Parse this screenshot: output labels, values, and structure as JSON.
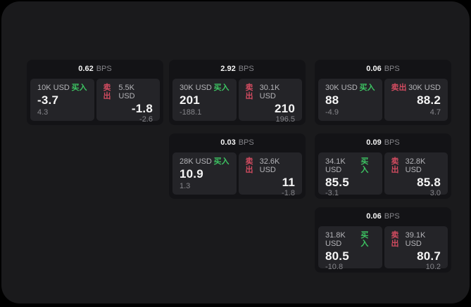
{
  "theme": {
    "outer_bg": "#000000",
    "surface_bg": "#1a1a1c",
    "card_bg": "#131316",
    "panel_bg": "#242428",
    "text_primary": "#f5f5f5",
    "text_secondary": "#b4b4b8",
    "text_muted": "#85858a",
    "buy_color": "#3dc462",
    "sell_color": "#d24b60"
  },
  "labels": {
    "unit": "BPS",
    "buy": "买入",
    "sell": "卖出"
  },
  "cards": [
    {
      "grid": {
        "row": 0,
        "col": 0
      },
      "bps": "0.62",
      "buy": {
        "amount": "10K USD",
        "value": "-3.7",
        "delta": "4.3"
      },
      "sell": {
        "amount": "5.5K USD",
        "value": "-1.8",
        "delta": "-2.6"
      }
    },
    {
      "grid": {
        "row": 0,
        "col": 1
      },
      "bps": "2.92",
      "buy": {
        "amount": "30K USD",
        "value": "201",
        "delta": "-188.1"
      },
      "sell": {
        "amount": "30.1K USD",
        "value": "210",
        "delta": "196.5"
      }
    },
    {
      "grid": {
        "row": 0,
        "col": 2
      },
      "bps": "0.06",
      "buy": {
        "amount": "30K USD",
        "value": "88",
        "delta": "-4.9"
      },
      "sell": {
        "amount": "30K USD",
        "value": "88.2",
        "delta": "4.7"
      }
    },
    {
      "grid": {
        "row": 1,
        "col": 1
      },
      "bps": "0.03",
      "buy": {
        "amount": "28K USD",
        "value": "10.9",
        "delta": "1.3"
      },
      "sell": {
        "amount": "32.6K USD",
        "value": "11",
        "delta": "-1.8"
      }
    },
    {
      "grid": {
        "row": 1,
        "col": 2
      },
      "bps": "0.09",
      "buy": {
        "amount": "34.1K USD",
        "value": "85.5",
        "delta": "-3.1"
      },
      "sell": {
        "amount": "32.8K USD",
        "value": "85.8",
        "delta": "3.0"
      }
    },
    {
      "grid": {
        "row": 2,
        "col": 2
      },
      "bps": "0.06",
      "buy": {
        "amount": "31.8K USD",
        "value": "80.5",
        "delta": "-10.8"
      },
      "sell": {
        "amount": "39.1K USD",
        "value": "80.7",
        "delta": "10.2"
      }
    }
  ]
}
